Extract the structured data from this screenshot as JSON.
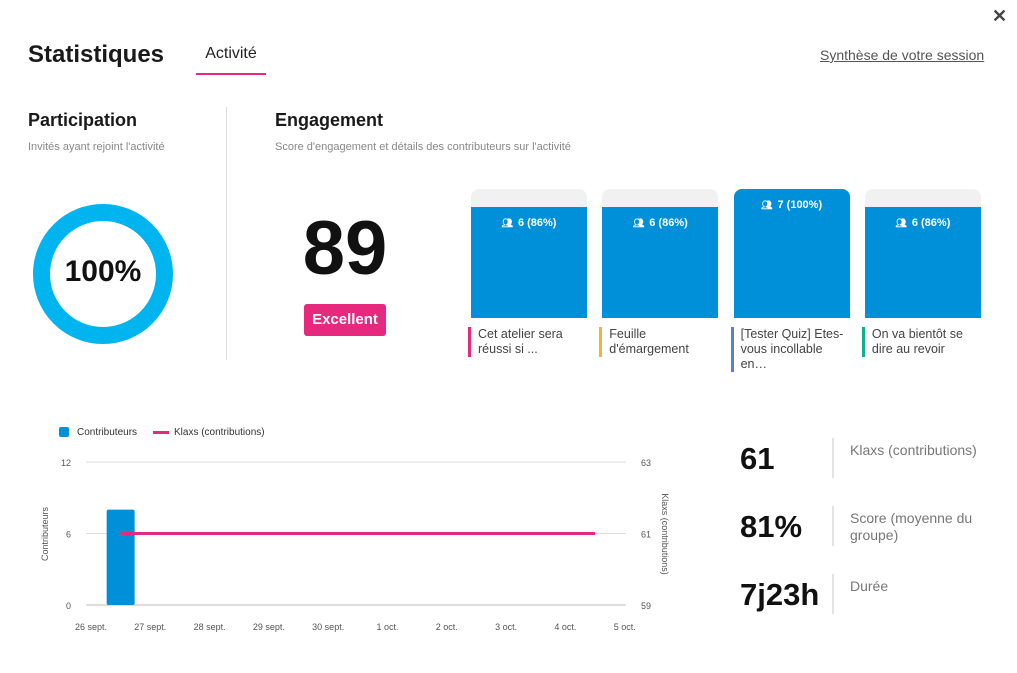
{
  "header": {
    "title": "Statistiques",
    "tab": "Activité",
    "summary_link": "Synthèse de votre session",
    "close": "✕"
  },
  "participation": {
    "title": "Participation",
    "subtitle": "Invités ayant rejoint l'activité",
    "percent_label": "100%",
    "percent": 100
  },
  "engagement": {
    "title": "Engagement",
    "subtitle": "Score d'engagement et détails des contributeurs sur l'activité",
    "score": "89",
    "rating": "Excellent",
    "activities": [
      {
        "value": "6 (86%)",
        "percent": 86,
        "label": "Cet atelier sera réussi si ...",
        "color": "#e6287f"
      },
      {
        "value": "6 (86%)",
        "percent": 86,
        "label": "Feuille d'émargement",
        "color": "#f5b335"
      },
      {
        "value": "7 (100%)",
        "percent": 100,
        "label": "[Tester Quiz] Etes-vous incollable en…",
        "color": "#5b7fd6"
      },
      {
        "value": "6 (86%)",
        "percent": 86,
        "label": "On va bientôt se dire au revoir",
        "color": "#10b08c"
      }
    ]
  },
  "stats": [
    {
      "value": "61",
      "label": "Klaxs (contributions)"
    },
    {
      "value": "81%",
      "label": "Score (moyenne du groupe)"
    },
    {
      "value": "7j23h",
      "label": "Durée"
    }
  ],
  "chart_data": {
    "type": "bar+line",
    "categories": [
      "26 sept.",
      "27 sept.",
      "28 sept.",
      "29 sept.",
      "30 sept.",
      "1 oct.",
      "2 oct.",
      "3 oct.",
      "4 oct.",
      "5 oct."
    ],
    "series": [
      {
        "name": "Contributeurs",
        "type": "bar",
        "axis": "left",
        "color": "#0090d9",
        "points": [
          {
            "x": 0.5,
            "y": 8
          }
        ]
      },
      {
        "name": "Klaxs (contributions)",
        "type": "line",
        "axis": "right",
        "color": "#e6287f",
        "points": [
          {
            "x": 0.5,
            "y": 61
          },
          {
            "x": 8.5,
            "y": 61
          }
        ]
      }
    ],
    "ylabel": "Contributeurs",
    "y2label": "Klaxs (contributions)",
    "yticks": [
      "0",
      "6",
      "12"
    ],
    "ylim": [
      0,
      12
    ],
    "y2ticks": [
      "59",
      "61",
      "63"
    ],
    "y2lim": [
      59,
      63
    ],
    "legend": "top-left",
    "grid": true
  }
}
